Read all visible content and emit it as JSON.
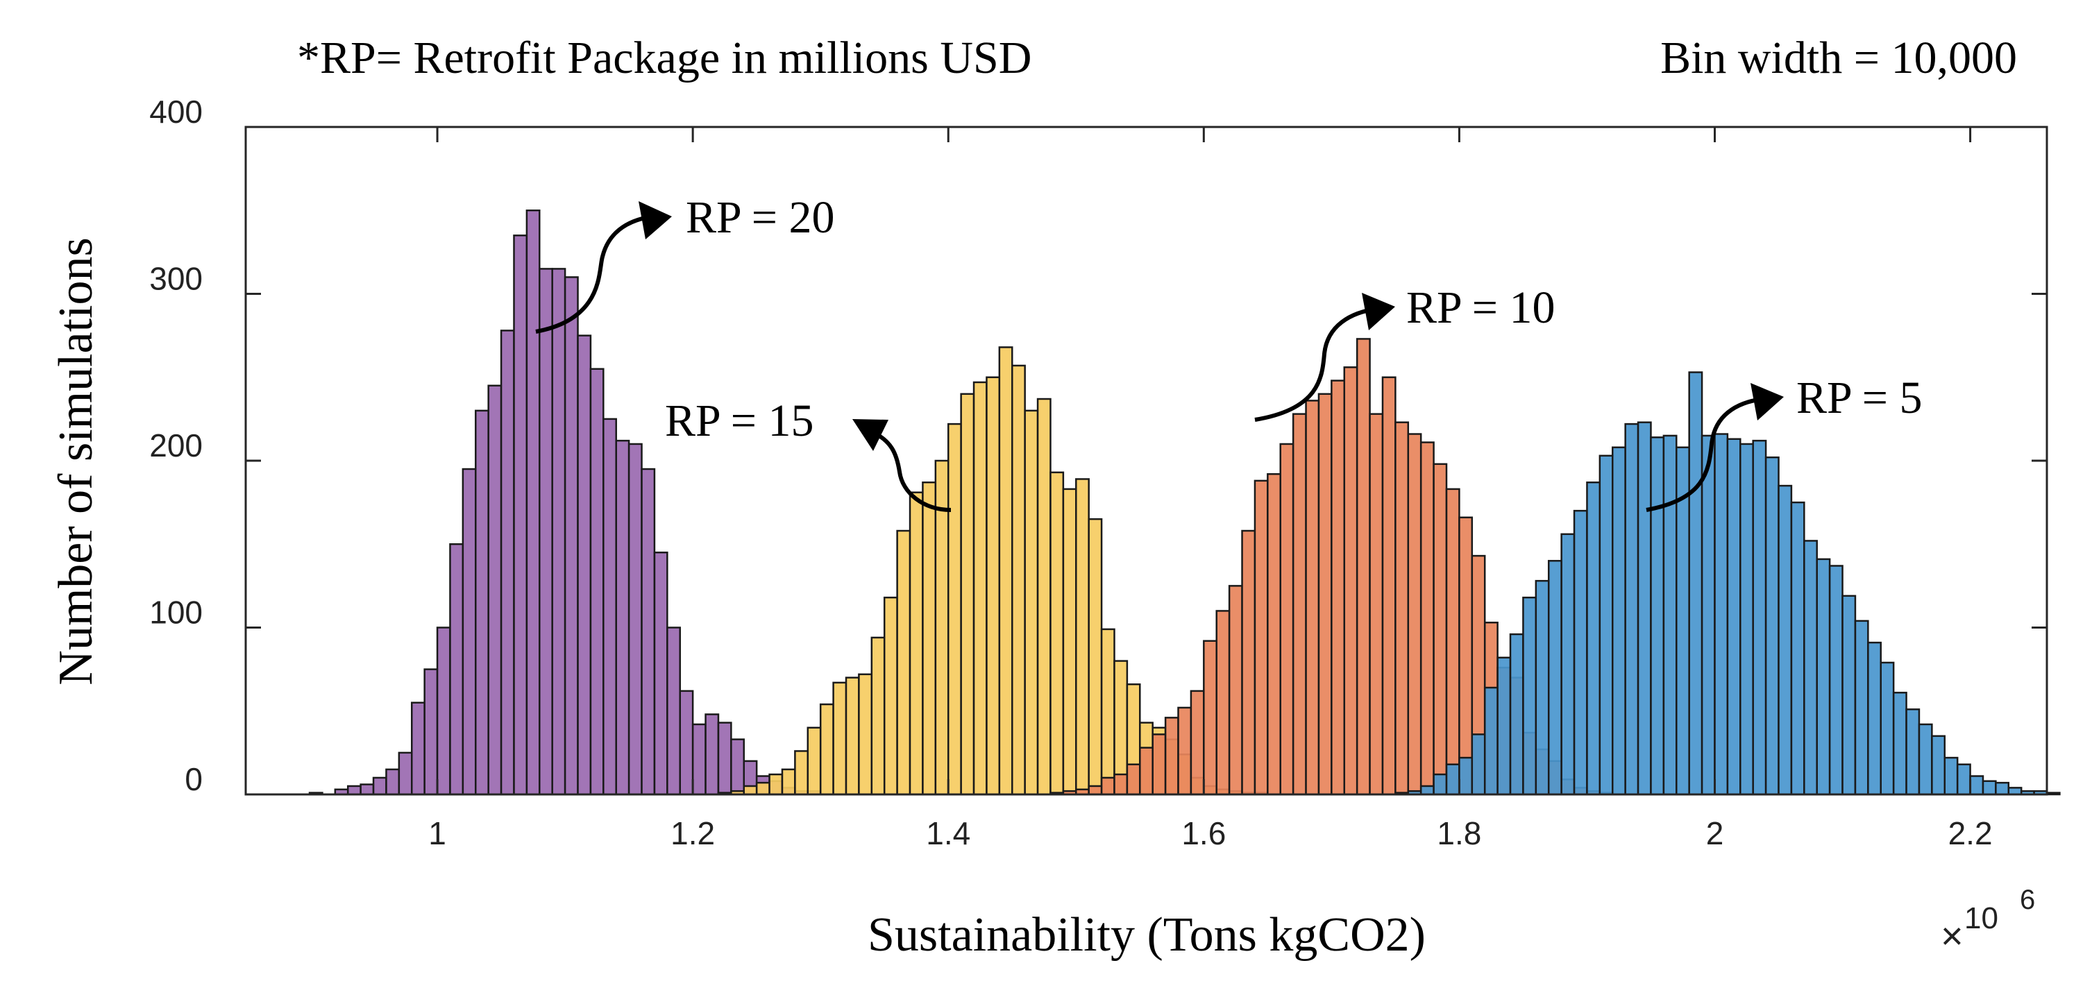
{
  "chart_data": {
    "type": "histogram",
    "note": "*RP= Retrofit Package in millions USD",
    "bin_note": "Bin width = 10,000",
    "bin_width": 10000,
    "xlabel": "Sustainability (Tons kgCO2)",
    "ylabel": "Number of simulations",
    "x_exponent_base": "10",
    "x_exponent_power": "6",
    "xlim": [
      0.85,
      2.26
    ],
    "ylim": [
      0,
      400
    ],
    "xticks": [
      1,
      1.2,
      1.4,
      1.6,
      1.8,
      2,
      2.2
    ],
    "xtick_labels": [
      "1",
      "1.2",
      "1.4",
      "1.6",
      "1.8",
      "2",
      "2.2"
    ],
    "yticks": [
      0,
      100,
      200,
      300,
      400
    ],
    "ytick_labels": [
      "0",
      "100",
      "200",
      "300",
      "400"
    ],
    "series": [
      {
        "name": "RP = 20",
        "color": "#9b6bb0",
        "x_start": 0.9,
        "counts": [
          1,
          0,
          3,
          5,
          6,
          10,
          15,
          25,
          55,
          75,
          100,
          150,
          195,
          230,
          245,
          278,
          335,
          350,
          315,
          315,
          310,
          275,
          255,
          225,
          212,
          210,
          195,
          145,
          100,
          62,
          42,
          48,
          43,
          33,
          20,
          11,
          8,
          4,
          2,
          2
        ]
      },
      {
        "name": "RP = 15",
        "color": "#f6cc62",
        "x_start": 1.22,
        "counts": [
          1,
          2,
          5,
          7,
          12,
          15,
          26,
          40,
          54,
          67,
          70,
          72,
          94,
          118,
          158,
          181,
          187,
          200,
          222,
          240,
          247,
          250,
          268,
          257,
          230,
          237,
          193,
          183,
          189,
          165,
          99,
          80,
          66,
          43,
          40,
          33,
          24,
          10,
          5,
          3,
          2,
          1,
          1
        ]
      },
      {
        "name": "RP = 10",
        "color": "#e8855d",
        "x_start": 1.48,
        "counts": [
          1,
          2,
          3,
          5,
          10,
          12,
          18,
          28,
          36,
          46,
          52,
          62,
          92,
          110,
          125,
          158,
          188,
          192,
          210,
          228,
          236,
          240,
          248,
          256,
          273,
          228,
          250,
          223,
          216,
          211,
          198,
          183,
          166,
          143,
          103,
          76,
          70,
          37,
          27,
          20,
          9,
          4,
          2,
          1
        ]
      },
      {
        "name": "RP = 5",
        "color": "#4a97cf",
        "x_start": 1.75,
        "counts": [
          1,
          2,
          5,
          12,
          18,
          22,
          36,
          64,
          82,
          96,
          118,
          128,
          140,
          156,
          170,
          187,
          203,
          208,
          222,
          223,
          214,
          215,
          208,
          253,
          215,
          216,
          213,
          210,
          212,
          202,
          185,
          175,
          152,
          141,
          137,
          119,
          104,
          91,
          79,
          61,
          51,
          42,
          35,
          22,
          18,
          11,
          8,
          7,
          4,
          2,
          2,
          1
        ]
      }
    ],
    "annotations": [
      {
        "label": "RP = 20",
        "series": "RP = 20"
      },
      {
        "label": "RP = 15",
        "series": "RP = 15"
      },
      {
        "label": "RP = 10",
        "series": "RP = 10"
      },
      {
        "label": "RP = 5",
        "series": "RP = 5"
      }
    ]
  }
}
